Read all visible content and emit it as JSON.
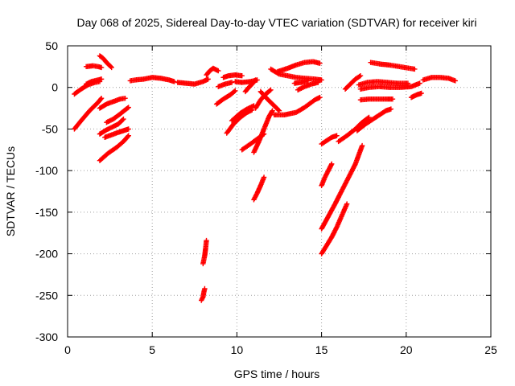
{
  "chart_data": {
    "type": "scatter",
    "title": "Day 068 of 2025, Sidereal Day-to-day VTEC variation (SDTVAR) for receiver kiri",
    "xlabel": "GPS time / hours",
    "ylabel": "SDTVAR / TECUs",
    "xlim": [
      0,
      25
    ],
    "ylim": [
      -300,
      50
    ],
    "xticks": [
      0,
      5,
      10,
      15,
      20,
      25
    ],
    "yticks": [
      -300,
      -250,
      -200,
      -150,
      -100,
      -50,
      0,
      50
    ],
    "grid": true,
    "marker": "plus",
    "color": "#ff0000",
    "series": [
      {
        "segments": [
          [
            [
              0.4,
              -50
            ],
            [
              0.8,
              -40
            ],
            [
              1.3,
              -28
            ],
            [
              1.8,
              -18
            ],
            [
              2.0,
              -13
            ]
          ],
          [
            [
              0.4,
              -8
            ],
            [
              0.8,
              -2
            ],
            [
              1.2,
              3
            ],
            [
              1.6,
              6
            ],
            [
              1.9,
              7
            ]
          ],
          [
            [
              1.1,
              4
            ],
            [
              1.4,
              7
            ],
            [
              1.8,
              9
            ],
            [
              2.0,
              10
            ]
          ],
          [
            [
              1.1,
              25
            ],
            [
              1.5,
              26
            ],
            [
              1.8,
              25
            ],
            [
              2.0,
              24
            ]
          ],
          [
            [
              1.9,
              38
            ],
            [
              2.1,
              35
            ],
            [
              2.3,
              30
            ],
            [
              2.6,
              24
            ]
          ],
          [
            [
              1.9,
              -25
            ],
            [
              2.3,
              -20
            ],
            [
              2.7,
              -17
            ],
            [
              3.1,
              -14
            ],
            [
              3.4,
              -13
            ]
          ],
          [
            [
              1.9,
              -56
            ],
            [
              2.3,
              -51
            ],
            [
              2.7,
              -47
            ],
            [
              3.0,
              -44
            ],
            [
              3.3,
              -38
            ]
          ],
          [
            [
              1.9,
              -88
            ],
            [
              2.4,
              -79
            ],
            [
              2.9,
              -72
            ],
            [
              3.3,
              -65
            ],
            [
              3.6,
              -58
            ]
          ],
          [
            [
              2.2,
              -60
            ],
            [
              2.6,
              -57
            ],
            [
              3.0,
              -54
            ],
            [
              3.3,
              -52
            ],
            [
              3.6,
              -50
            ]
          ],
          [
            [
              2.3,
              -42
            ],
            [
              2.7,
              -38
            ],
            [
              3.1,
              -32
            ],
            [
              3.4,
              -27
            ],
            [
              3.6,
              -24
            ]
          ],
          [
            [
              3.7,
              8
            ],
            [
              4.0,
              9
            ],
            [
              4.5,
              10
            ],
            [
              5.0,
              12
            ],
            [
              5.5,
              11
            ],
            [
              6.0,
              9
            ],
            [
              6.3,
              7
            ]
          ],
          [
            [
              6.5,
              6
            ],
            [
              7.0,
              5
            ],
            [
              7.5,
              4
            ],
            [
              8.0,
              7
            ],
            [
              8.3,
              10
            ]
          ],
          [
            [
              8.2,
              15
            ],
            [
              8.4,
              20
            ],
            [
              8.6,
              23
            ],
            [
              8.9,
              20
            ]
          ],
          [
            [
              8.0,
              -212
            ],
            [
              8.1,
              -202
            ],
            [
              8.15,
              -194
            ],
            [
              8.2,
              -184
            ]
          ],
          [
            [
              7.9,
              -256
            ],
            [
              8.0,
              -252
            ],
            [
              8.05,
              -246
            ],
            [
              8.1,
              -242
            ]
          ],
          [
            [
              9.2,
              12
            ],
            [
              9.5,
              14
            ],
            [
              9.9,
              15
            ],
            [
              10.3,
              14
            ]
          ],
          [
            [
              9.9,
              7
            ],
            [
              10.3,
              6
            ],
            [
              10.8,
              7
            ],
            [
              11.2,
              9
            ]
          ],
          [
            [
              9.4,
              -55
            ],
            [
              9.8,
              -44
            ],
            [
              10.2,
              -36
            ],
            [
              10.6,
              -30
            ],
            [
              10.9,
              -27
            ]
          ],
          [
            [
              9.7,
              -40
            ],
            [
              10.2,
              -31
            ],
            [
              10.6,
              -26
            ],
            [
              11.0,
              -22
            ]
          ],
          [
            [
              8.8,
              -20
            ],
            [
              9.2,
              -14
            ],
            [
              9.6,
              -9
            ],
            [
              9.9,
              -4
            ]
          ],
          [
            [
              8.9,
              1
            ],
            [
              9.3,
              4
            ],
            [
              9.7,
              6
            ]
          ],
          [
            [
              10.3,
              -75
            ],
            [
              10.8,
              -68
            ],
            [
              11.2,
              -62
            ],
            [
              11.6,
              -56
            ]
          ],
          [
            [
              10.5,
              -5
            ],
            [
              10.7,
              0
            ],
            [
              10.9,
              4
            ],
            [
              11.1,
              9
            ]
          ],
          [
            [
              11.0,
              -78
            ],
            [
              11.3,
              -65
            ],
            [
              11.6,
              -50
            ],
            [
              11.9,
              -35
            ],
            [
              12.1,
              -28
            ]
          ],
          [
            [
              11.1,
              -25
            ],
            [
              11.4,
              -15
            ],
            [
              11.7,
              -8
            ],
            [
              12.0,
              -3
            ]
          ],
          [
            [
              11.0,
              -135
            ],
            [
              11.2,
              -127
            ],
            [
              11.4,
              -118
            ],
            [
              11.6,
              -108
            ]
          ],
          [
            [
              11.4,
              -5
            ],
            [
              11.8,
              -14
            ],
            [
              12.2,
              -22
            ],
            [
              12.5,
              -28
            ]
          ],
          [
            [
              12.2,
              -33
            ],
            [
              12.8,
              -33
            ],
            [
              13.5,
              -30
            ],
            [
              14.0,
              -24
            ],
            [
              14.6,
              -15
            ],
            [
              14.9,
              -12
            ]
          ],
          [
            [
              12.0,
              22
            ],
            [
              12.5,
              16
            ],
            [
              13.0,
              14
            ],
            [
              13.5,
              12
            ],
            [
              14.0,
              11
            ],
            [
              14.6,
              10
            ],
            [
              15.0,
              9
            ]
          ],
          [
            [
              12.4,
              19
            ],
            [
              13.0,
              23
            ],
            [
              13.5,
              27
            ],
            [
              14.0,
              30
            ],
            [
              14.5,
              31
            ],
            [
              14.9,
              29
            ]
          ],
          [
            [
              13.4,
              5
            ],
            [
              13.8,
              6
            ],
            [
              14.2,
              8
            ]
          ],
          [
            [
              13.6,
              -3
            ],
            [
              14.0,
              1
            ],
            [
              14.4,
              4
            ],
            [
              14.8,
              6
            ]
          ],
          [
            [
              15.0,
              -68
            ],
            [
              15.3,
              -64
            ],
            [
              15.6,
              -60
            ],
            [
              15.9,
              -58
            ]
          ],
          [
            [
              15.0,
              -118
            ],
            [
              15.2,
              -108
            ],
            [
              15.4,
              -100
            ],
            [
              15.6,
              -92
            ]
          ],
          [
            [
              15.0,
              -170
            ],
            [
              15.4,
              -155
            ],
            [
              15.8,
              -140
            ],
            [
              16.2,
              -124
            ],
            [
              16.6,
              -108
            ],
            [
              17.0,
              -92
            ],
            [
              17.4,
              -70
            ]
          ],
          [
            [
              15.0,
              -200
            ],
            [
              15.3,
              -190
            ],
            [
              15.6,
              -180
            ],
            [
              15.9,
              -168
            ],
            [
              16.2,
              -154
            ],
            [
              16.5,
              -140
            ]
          ],
          [
            [
              16.0,
              -65
            ],
            [
              16.5,
              -58
            ],
            [
              17.0,
              -50
            ],
            [
              17.4,
              -42
            ],
            [
              17.8,
              -36
            ]
          ],
          [
            [
              17.1,
              -52
            ],
            [
              17.6,
              -44
            ],
            [
              18.2,
              -36
            ],
            [
              18.8,
              -28
            ],
            [
              19.1,
              -26
            ]
          ],
          [
            [
              16.4,
              -2
            ],
            [
              16.7,
              4
            ],
            [
              17.0,
              10
            ],
            [
              17.3,
              14
            ]
          ],
          [
            [
              17.3,
              -15
            ],
            [
              17.8,
              -14
            ],
            [
              18.3,
              -14
            ],
            [
              18.8,
              -14
            ],
            [
              19.2,
              -14
            ]
          ],
          [
            [
              17.2,
              3
            ],
            [
              17.7,
              6
            ],
            [
              18.3,
              7
            ],
            [
              18.9,
              6
            ],
            [
              19.5,
              5
            ],
            [
              20.1,
              5
            ]
          ],
          [
            [
              17.3,
              -2
            ],
            [
              17.8,
              0
            ],
            [
              18.4,
              1
            ],
            [
              19.0,
              0
            ],
            [
              19.6,
              0
            ],
            [
              20.3,
              1
            ],
            [
              20.8,
              5
            ]
          ],
          [
            [
              17.9,
              30
            ],
            [
              18.5,
              28
            ],
            [
              19.0,
              27
            ],
            [
              19.6,
              25
            ],
            [
              20.2,
              23
            ],
            [
              20.5,
              22
            ]
          ],
          [
            [
              20.3,
              -12
            ],
            [
              20.6,
              -9
            ],
            [
              20.9,
              -7
            ]
          ],
          [
            [
              21.0,
              9
            ],
            [
              21.5,
              12
            ],
            [
              22.0,
              12
            ],
            [
              22.5,
              11
            ],
            [
              22.9,
              8
            ]
          ]
        ]
      }
    ]
  }
}
